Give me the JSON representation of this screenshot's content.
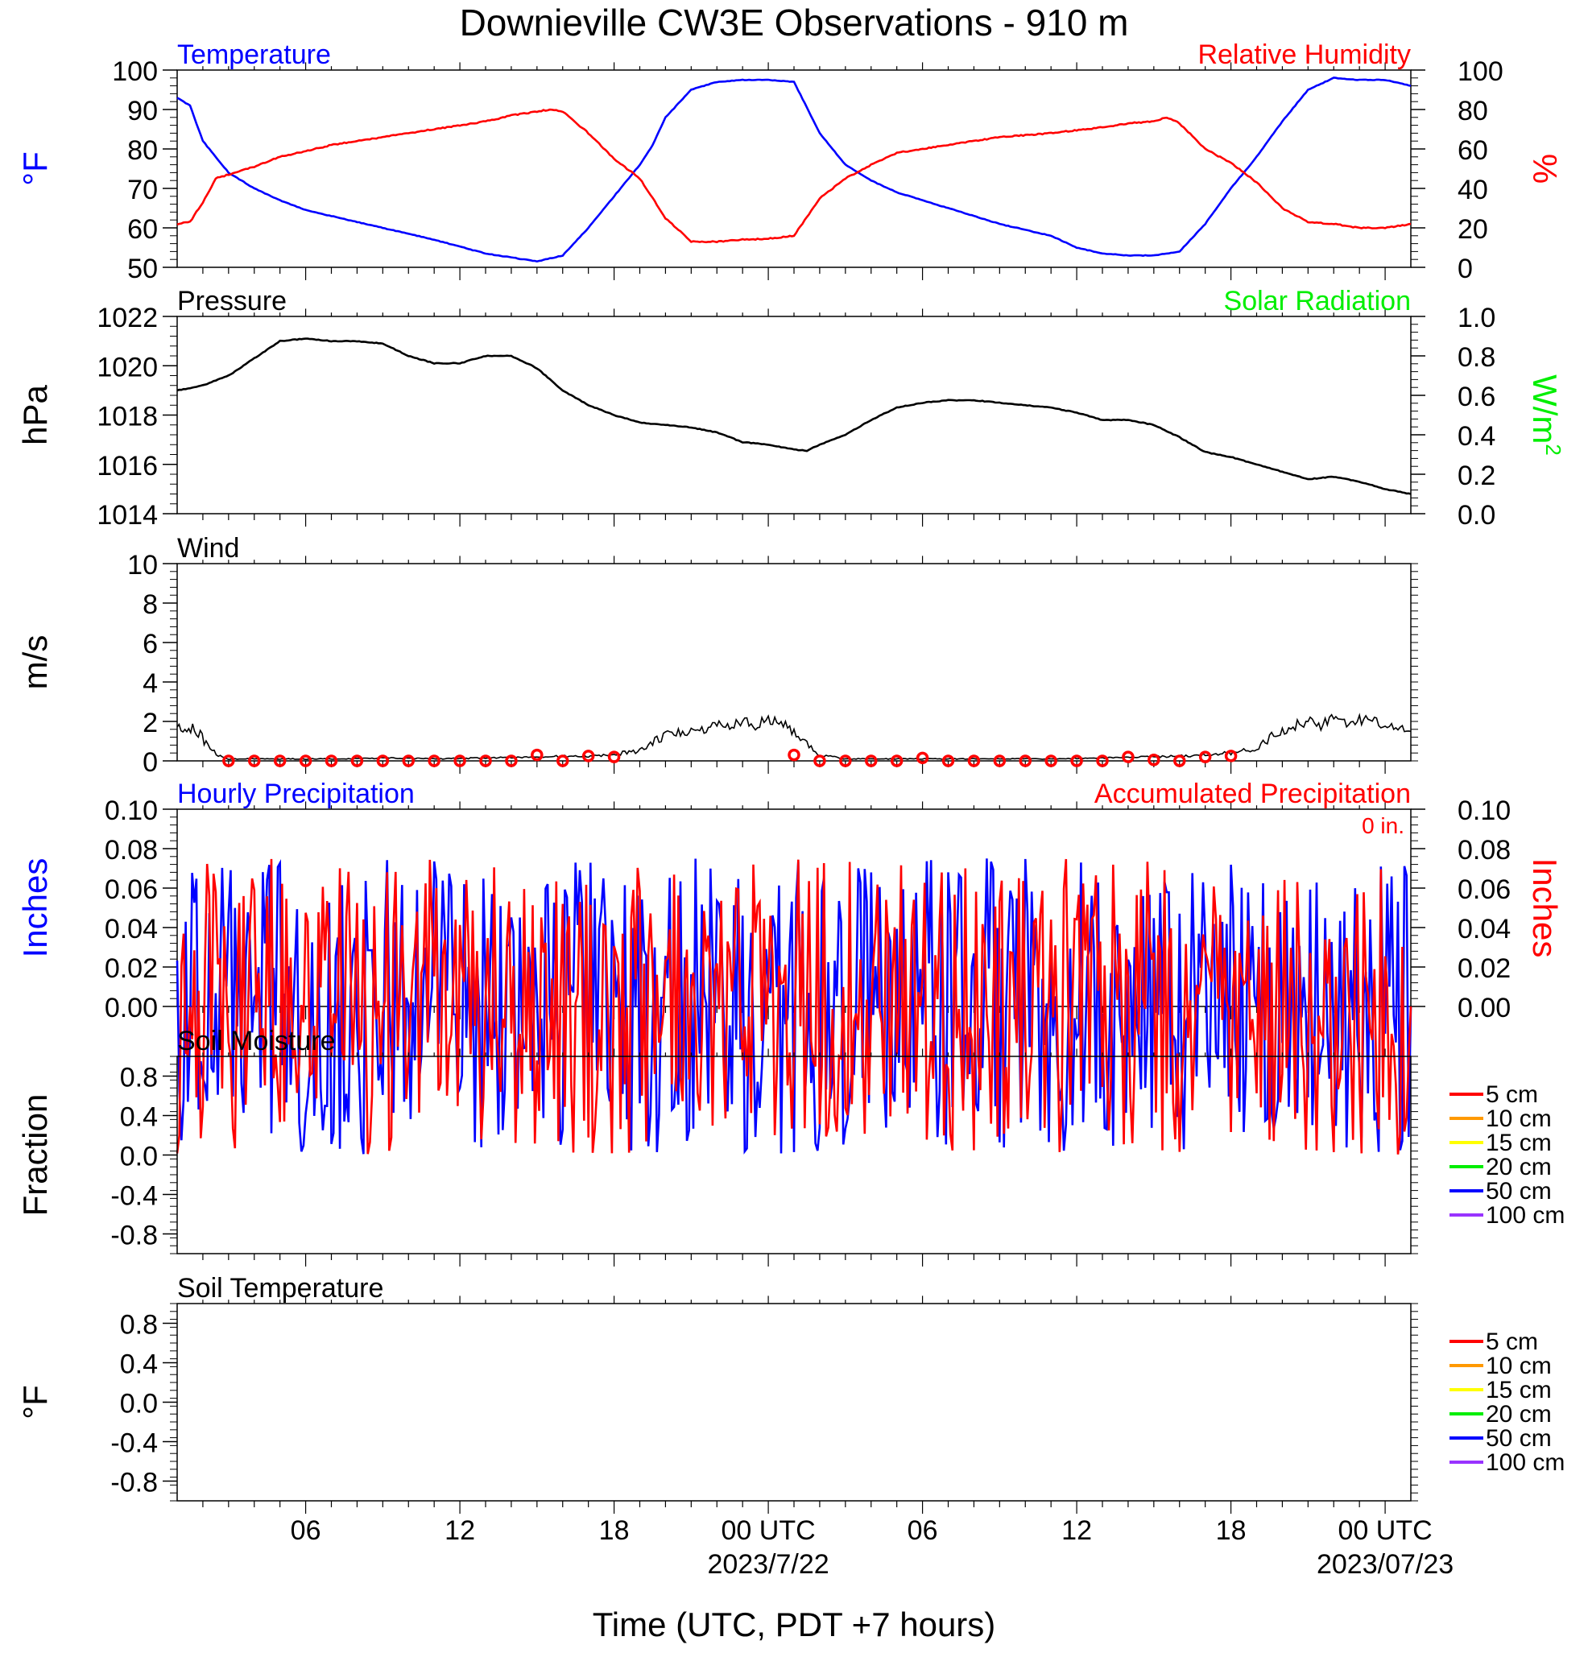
{
  "title": "Downieville CW3E Observations - 910 m",
  "xlabel": "Time (UTC, PDT +7 hours)",
  "time_axis": {
    "range_hours": [
      0,
      48
    ],
    "ticks": [
      {
        "t": 5,
        "label": "06",
        "date": ""
      },
      {
        "t": 11,
        "label": "12",
        "date": ""
      },
      {
        "t": 17,
        "label": "18",
        "date": ""
      },
      {
        "t": 23,
        "label": "00 UTC",
        "date": "2023/7/22"
      },
      {
        "t": 29,
        "label": "06",
        "date": ""
      },
      {
        "t": 35,
        "label": "12",
        "date": ""
      },
      {
        "t": 41,
        "label": "18",
        "date": ""
      },
      {
        "t": 47,
        "label": "00 UTC",
        "date": "2023/07/23"
      }
    ]
  },
  "colors": {
    "blue": "#0000ff",
    "red": "#ff0000",
    "green": "#00ee00",
    "black": "#000000",
    "orange": "#ff9900",
    "yellow": "#ffff00",
    "purple": "#9933ff"
  },
  "chart_data": [
    {
      "type": "line",
      "panel": "temperature_rh",
      "left_title": "Temperature",
      "right_title": "Relative Humidity",
      "ylabel_left": "°F",
      "ylabel_right": "%",
      "ylim_left": [
        50,
        100
      ],
      "ylim_right": [
        0,
        100
      ],
      "yticks_left": [
        "50",
        "60",
        "70",
        "80",
        "90",
        "100"
      ],
      "yticks_right": [
        "0",
        "20",
        "40",
        "60",
        "80",
        "100"
      ],
      "series": [
        {
          "name": "Temperature",
          "axis": "left",
          "color": "#0000ff",
          "t": [
            0,
            0.5,
            1,
            2,
            3,
            4,
            5,
            6,
            8,
            10,
            12,
            13,
            14,
            15,
            16,
            17,
            18,
            18.5,
            19,
            20,
            21,
            22,
            23,
            24,
            25,
            26,
            27,
            28,
            30,
            32,
            34,
            35,
            36,
            37,
            38,
            39,
            40,
            41,
            41.5,
            42,
            43,
            44,
            45,
            46,
            47,
            48
          ],
          "values": [
            93,
            91,
            82,
            74,
            70,
            67,
            64.5,
            63,
            60,
            57,
            53.5,
            52.5,
            51.5,
            53,
            60,
            68,
            76,
            81,
            88,
            95,
            97,
            97.5,
            97.5,
            97,
            84,
            76,
            72,
            69,
            65,
            61,
            58,
            55,
            53.5,
            53,
            53,
            54,
            61,
            70,
            74,
            78,
            87,
            95,
            98,
            97.5,
            97.5,
            96
          ]
        },
        {
          "name": "Relative Humidity",
          "axis": "right",
          "color": "#ff0000",
          "t": [
            0,
            0.5,
            1,
            1.5,
            2,
            3,
            4,
            5,
            6,
            8,
            10,
            12,
            13,
            14,
            14.5,
            15,
            16,
            17,
            17.5,
            18,
            19,
            20,
            21,
            22,
            23,
            24,
            25,
            26,
            27,
            28,
            30,
            32,
            34,
            36,
            37,
            38,
            38.5,
            39,
            40,
            41,
            41.5,
            42,
            43,
            44,
            45,
            46,
            47,
            48
          ],
          "values": [
            22,
            23,
            33,
            45,
            47,
            51,
            56,
            59,
            62,
            66,
            70,
            74,
            77,
            79,
            80,
            79,
            68,
            55,
            50,
            45,
            25,
            13,
            13,
            14,
            14.5,
            16,
            35,
            45,
            52,
            58,
            62,
            66,
            68,
            71,
            73,
            74,
            76,
            73,
            60,
            53,
            48,
            43,
            30,
            23,
            22,
            20,
            20,
            22
          ]
        }
      ]
    },
    {
      "type": "line",
      "panel": "pressure",
      "left_title": "Pressure",
      "right_title": "Solar Radiation",
      "ylabel_left": "hPa",
      "ylabel_right": "W/m",
      "ylabel_right_sup": "2",
      "ylim_left": [
        1014,
        1022
      ],
      "ylim_right": [
        0,
        1
      ],
      "yticks_left": [
        "1014",
        "1016",
        "1018",
        "1020",
        "1022"
      ],
      "yticks_right": [
        "0.0",
        "0.2",
        "0.4",
        "0.6",
        "0.8",
        "1.0"
      ],
      "series": [
        {
          "name": "Pressure",
          "axis": "left",
          "color": "#000000",
          "t": [
            0,
            1,
            2,
            3,
            4,
            5,
            6,
            7,
            8,
            9,
            10,
            11,
            12,
            13,
            14,
            15,
            16,
            17,
            18,
            19,
            20,
            21,
            22,
            23,
            24,
            24.5,
            25,
            26,
            27,
            28,
            29,
            30,
            31,
            32,
            33,
            34,
            35,
            36,
            37,
            38,
            39,
            40,
            41,
            42,
            43,
            44,
            45,
            46,
            47,
            48
          ],
          "values": [
            1019.0,
            1019.2,
            1019.6,
            1020.3,
            1021.0,
            1021.1,
            1021.0,
            1021.0,
            1020.9,
            1020.4,
            1020.1,
            1020.1,
            1020.4,
            1020.4,
            1019.9,
            1019.0,
            1018.4,
            1018.0,
            1017.7,
            1017.6,
            1017.5,
            1017.3,
            1016.9,
            1016.8,
            1016.6,
            1016.55,
            1016.8,
            1017.2,
            1017.8,
            1018.3,
            1018.5,
            1018.6,
            1018.6,
            1018.5,
            1018.4,
            1018.3,
            1018.1,
            1017.8,
            1017.8,
            1017.6,
            1017.1,
            1016.5,
            1016.3,
            1016.0,
            1015.7,
            1015.4,
            1015.5,
            1015.3,
            1015.0,
            1014.8
          ]
        },
        {
          "name": "Solar Radiation",
          "axis": "right",
          "color": "#00ee00",
          "t": [],
          "values": []
        }
      ]
    },
    {
      "type": "line",
      "panel": "wind",
      "left_title": "Wind",
      "ylabel_left": "m/s",
      "ylim_left": [
        0,
        10
      ],
      "yticks_left": [
        "0",
        "2",
        "4",
        "6",
        "8",
        "10"
      ],
      "series": [
        {
          "name": "Wind speed",
          "axis": "left",
          "color": "#000000",
          "t": [
            0,
            0.3,
            0.6,
            0.9,
            1.2,
            1.6,
            2,
            4,
            6,
            8,
            10,
            12,
            14,
            16,
            17,
            18,
            18.5,
            19,
            19.5,
            20,
            20.5,
            21,
            21.5,
            22,
            22.5,
            23,
            23.5,
            24,
            24.5,
            25,
            25.5,
            26,
            28,
            30,
            32,
            34,
            36,
            38,
            40,
            41,
            42,
            42.5,
            43,
            43.5,
            44,
            44.5,
            45,
            45.5,
            46,
            46.5,
            47,
            47.5,
            48
          ],
          "values": [
            1.8,
            1.4,
            1.7,
            1.3,
            0.8,
            0.3,
            0.1,
            0.1,
            0.1,
            0.15,
            0.1,
            0.15,
            0.2,
            0.25,
            0.35,
            0.5,
            1.0,
            1.3,
            1.4,
            1.5,
            1.6,
            1.8,
            1.7,
            2.0,
            1.8,
            2.1,
            1.9,
            1.5,
            0.8,
            0.3,
            0.2,
            0.1,
            0.1,
            0.1,
            0.1,
            0.1,
            0.15,
            0.2,
            0.3,
            0.4,
            0.6,
            1.2,
            1.5,
            1.8,
            2.0,
            1.8,
            2.2,
            1.9,
            2.1,
            2.0,
            1.8,
            1.6,
            1.5
          ]
        },
        {
          "name": "Hourly wind (circles)",
          "axis": "left",
          "color": "#ff0000",
          "t": [
            2,
            3,
            4,
            5,
            6,
            7,
            8,
            9,
            10,
            11,
            12,
            13,
            14,
            15,
            16,
            17,
            24,
            25,
            26,
            27,
            28,
            29,
            30,
            31,
            32,
            33,
            34,
            35,
            36,
            37,
            38,
            39,
            40,
            41
          ],
          "values": [
            0,
            0,
            0,
            0,
            0,
            0,
            0,
            0,
            0,
            0,
            0,
            0,
            0.3,
            0,
            0.25,
            0.2,
            0.3,
            0,
            0,
            0,
            0,
            0.15,
            0,
            0,
            0,
            0,
            0,
            0,
            0,
            0.2,
            0.05,
            0,
            0.2,
            0.25
          ]
        }
      ]
    },
    {
      "type": "line",
      "panel": "precipitation",
      "left_title": "Hourly Precipitation",
      "right_title": "Accumulated Precipitation",
      "annotation": "0 in.",
      "ylabel_left": "Inches",
      "ylabel_right": "Inches",
      "ylim_left": [
        0,
        0.1
      ],
      "ylim_right": [
        0,
        0.1
      ],
      "yticks_left": [
        "0.00",
        "0.02",
        "0.04",
        "0.06",
        "0.08",
        "0.10"
      ],
      "yticks_right": [
        "0.00",
        "0.02",
        "0.04",
        "0.06",
        "0.08",
        "0.10"
      ],
      "series": [
        {
          "name": "Hourly Precipitation",
          "axis": "left",
          "color": "#0000ff",
          "t": [
            0,
            48
          ],
          "values": [
            0,
            0
          ]
        },
        {
          "name": "Accumulated Precipitation",
          "axis": "right",
          "color": "#ff0000",
          "t": [
            0,
            48
          ],
          "values": [
            0,
            0
          ]
        }
      ]
    },
    {
      "type": "line",
      "panel": "soil_moisture",
      "left_title": "Soil Moisture",
      "ylabel_left": "Fraction",
      "ylim_left": [
        -1,
        1
      ],
      "yticks_left": [
        "-0.8",
        "-0.4",
        "0.0",
        "0.4",
        "0.8"
      ],
      "legend": [
        {
          "label": "5 cm",
          "color": "#ff0000"
        },
        {
          "label": "10 cm",
          "color": "#ff9900"
        },
        {
          "label": "15 cm",
          "color": "#ffff00"
        },
        {
          "label": "20 cm",
          "color": "#00ee00"
        },
        {
          "label": "50 cm",
          "color": "#0000ff"
        },
        {
          "label": "100 cm",
          "color": "#9933ff"
        }
      ],
      "series": []
    },
    {
      "type": "line",
      "panel": "soil_temperature",
      "left_title": "Soil Temperature",
      "ylabel_left": "°F",
      "ylim_left": [
        -1,
        1
      ],
      "yticks_left": [
        "-0.8",
        "-0.4",
        "0.0",
        "0.4",
        "0.8"
      ],
      "legend": [
        {
          "label": "5 cm",
          "color": "#ff0000"
        },
        {
          "label": "10 cm",
          "color": "#ff9900"
        },
        {
          "label": "15 cm",
          "color": "#ffff00"
        },
        {
          "label": "20 cm",
          "color": "#00ee00"
        },
        {
          "label": "50 cm",
          "color": "#0000ff"
        },
        {
          "label": "100 cm",
          "color": "#9933ff"
        }
      ],
      "series": []
    }
  ]
}
